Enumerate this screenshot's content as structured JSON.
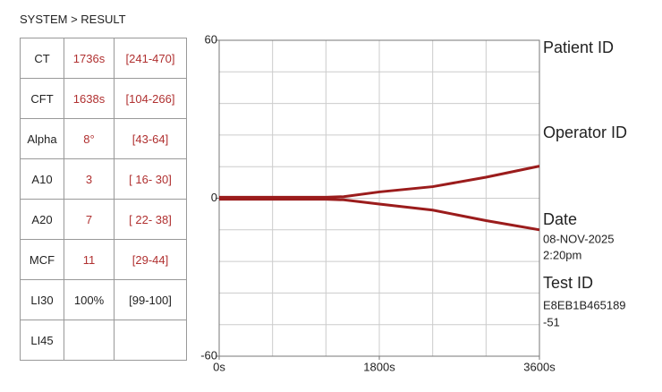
{
  "header": {
    "title": "SYSTEM > RESULT"
  },
  "table": {
    "rows": [
      {
        "name": "CT",
        "value": "1736s",
        "range": "[241-470]",
        "color": "#b03030"
      },
      {
        "name": "CFT",
        "value": "1638s",
        "range": "[104-266]",
        "color": "#b03030"
      },
      {
        "name": "Alpha",
        "value": "8°",
        "range": "[43-64]",
        "color": "#b03030"
      },
      {
        "name": "A10",
        "value": "3",
        "range": "[ 16- 30]",
        "color": "#b03030"
      },
      {
        "name": "A20",
        "value": "7",
        "range": "[ 22- 38]",
        "color": "#b03030"
      },
      {
        "name": "MCF",
        "value": "11",
        "range": "[29-44]",
        "color": "#b03030"
      },
      {
        "name": "LI30",
        "value": "100%",
        "range": "[99-100]",
        "color": "#222222"
      },
      {
        "name": "LI45"
      }
    ]
  },
  "chart_data": {
    "type": "line",
    "x": [
      0,
      600,
      1200,
      1400,
      1800,
      2400,
      3000,
      3600
    ],
    "series": [
      {
        "color": "#9b1c1c",
        "values": [
          0.4,
          0.4,
          0.4,
          0.6,
          2.4,
          4.4,
          8,
          12.2
        ]
      },
      {
        "color": "#9b1c1c",
        "values": [
          -0.4,
          -0.4,
          -0.4,
          -0.6,
          -2.2,
          -4.5,
          -8.5,
          -12
        ]
      }
    ],
    "xlim": [
      0,
      3600
    ],
    "xticks": [
      {
        "value": 0,
        "label": "0s"
      },
      {
        "value": 1800,
        "label": "1800s"
      },
      {
        "value": 3600,
        "label": "3600s"
      }
    ],
    "ylim": [
      -60,
      60
    ],
    "yticks": [
      -60,
      0,
      60
    ],
    "grid": true
  },
  "info": {
    "patient_id": "Patient ID",
    "operator_id": "Operator ID",
    "date_label": "Date",
    "date": "08-NOV-2025",
    "time": "2:20pm",
    "test_id_label": "Test ID",
    "test_id": [
      "E8EB1B465189",
      "-51"
    ]
  }
}
